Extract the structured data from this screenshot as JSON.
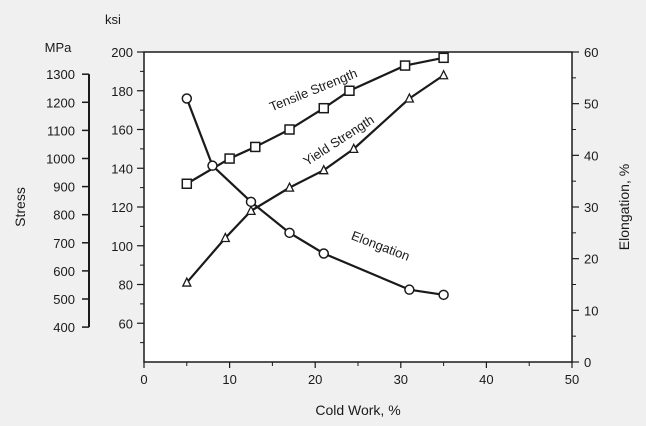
{
  "chart_data": {
    "type": "line",
    "x_axis": {
      "label": "Cold Work, %",
      "range": [
        0,
        50
      ],
      "ticks": [
        0,
        10,
        20,
        30,
        40,
        50
      ]
    },
    "y_axes": {
      "ksi": {
        "unit": "ksi",
        "range": [
          40,
          200
        ],
        "ticks": [
          60,
          80,
          100,
          120,
          140,
          160,
          180,
          200
        ]
      },
      "mpa": {
        "unit": "MPa",
        "label": "Stress",
        "ticks": [
          400,
          500,
          600,
          700,
          800,
          900,
          1000,
          1100,
          1200,
          1300
        ]
      },
      "right": {
        "label": "Elongation, %",
        "range": [
          0,
          60
        ],
        "ticks": [
          0,
          10,
          20,
          30,
          40,
          50,
          60
        ]
      }
    },
    "series": [
      {
        "name": "Tensile Strength",
        "axis": "ksi",
        "marker": "square",
        "x": [
          5,
          10,
          13,
          17,
          21,
          24,
          30.5,
          35
        ],
        "y": [
          132,
          145,
          151,
          160,
          171,
          180,
          193,
          197
        ]
      },
      {
        "name": "Yield Strength",
        "axis": "ksi",
        "marker": "triangle",
        "x": [
          5,
          9.5,
          12.5,
          17,
          21,
          24.5,
          31,
          35
        ],
        "y": [
          81,
          104,
          118,
          130,
          139,
          150,
          176,
          188
        ]
      },
      {
        "name": "Elongation",
        "axis": "right",
        "marker": "circle",
        "x": [
          5,
          8,
          12.5,
          17,
          21,
          31,
          35
        ],
        "y": [
          51,
          38,
          31,
          25,
          21,
          14,
          13
        ]
      }
    ],
    "grid": false,
    "legend": "none"
  }
}
